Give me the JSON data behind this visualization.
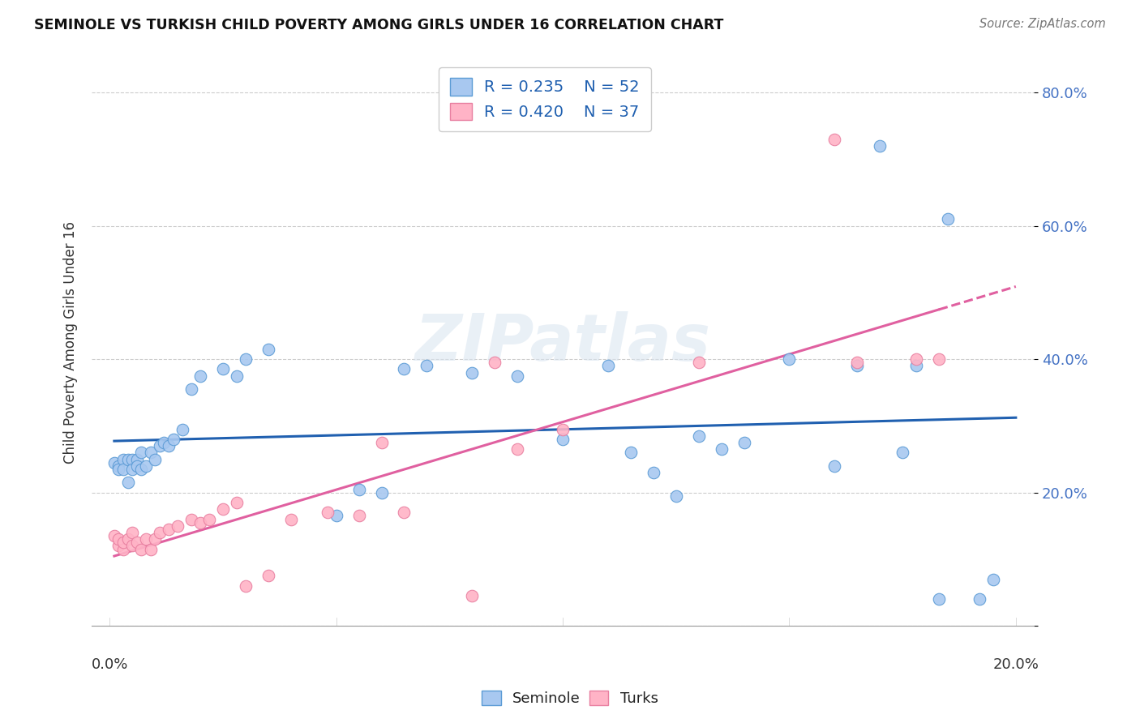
{
  "title": "SEMINOLE VS TURKISH CHILD POVERTY AMONG GIRLS UNDER 16 CORRELATION CHART",
  "source": "Source: ZipAtlas.com",
  "ylabel": "Child Poverty Among Girls Under 16",
  "legend_blue": {
    "R": "0.235",
    "N": "52",
    "label": "Seminole"
  },
  "legend_pink": {
    "R": "0.420",
    "N": "37",
    "label": "Turks"
  },
  "xlim": [
    0.0,
    0.2
  ],
  "ylim": [
    0.0,
    0.85
  ],
  "ytick_vals": [
    0.0,
    0.2,
    0.4,
    0.6,
    0.8
  ],
  "ytick_labels": [
    "",
    "20.0%",
    "40.0%",
    "60.0%",
    "80.0%"
  ],
  "blue_scatter_color": "#a8c8f0",
  "blue_edge_color": "#5b9bd5",
  "pink_scatter_color": "#ffb3c6",
  "pink_edge_color": "#e87fa0",
  "blue_line_color": "#2060b0",
  "pink_line_color": "#e060a0",
  "grid_color": "#cccccc",
  "watermark": "ZIPatlas",
  "watermark_color": "#d8e4f0",
  "seminole_x": [
    0.001,
    0.002,
    0.002,
    0.003,
    0.003,
    0.004,
    0.004,
    0.005,
    0.005,
    0.006,
    0.006,
    0.007,
    0.007,
    0.008,
    0.009,
    0.01,
    0.011,
    0.012,
    0.013,
    0.014,
    0.016,
    0.018,
    0.02,
    0.025,
    0.028,
    0.03,
    0.035,
    0.05,
    0.055,
    0.06,
    0.065,
    0.07,
    0.08,
    0.09,
    0.1,
    0.11,
    0.115,
    0.12,
    0.125,
    0.13,
    0.135,
    0.14,
    0.15,
    0.16,
    0.165,
    0.17,
    0.175,
    0.178,
    0.183,
    0.185,
    0.192,
    0.195
  ],
  "seminole_y": [
    0.245,
    0.24,
    0.235,
    0.25,
    0.235,
    0.25,
    0.215,
    0.25,
    0.235,
    0.25,
    0.24,
    0.26,
    0.235,
    0.24,
    0.26,
    0.25,
    0.27,
    0.275,
    0.27,
    0.28,
    0.295,
    0.355,
    0.375,
    0.385,
    0.375,
    0.4,
    0.415,
    0.165,
    0.205,
    0.2,
    0.385,
    0.39,
    0.38,
    0.375,
    0.28,
    0.39,
    0.26,
    0.23,
    0.195,
    0.285,
    0.265,
    0.275,
    0.4,
    0.24,
    0.39,
    0.72,
    0.26,
    0.39,
    0.04,
    0.61,
    0.04,
    0.07
  ],
  "turks_x": [
    0.001,
    0.002,
    0.002,
    0.003,
    0.003,
    0.004,
    0.005,
    0.005,
    0.006,
    0.007,
    0.008,
    0.009,
    0.01,
    0.011,
    0.013,
    0.015,
    0.018,
    0.02,
    0.022,
    0.025,
    0.028,
    0.03,
    0.035,
    0.04,
    0.048,
    0.055,
    0.06,
    0.065,
    0.08,
    0.085,
    0.09,
    0.1,
    0.13,
    0.16,
    0.165,
    0.178,
    0.183
  ],
  "turks_y": [
    0.135,
    0.12,
    0.13,
    0.115,
    0.125,
    0.13,
    0.14,
    0.12,
    0.125,
    0.115,
    0.13,
    0.115,
    0.13,
    0.14,
    0.145,
    0.15,
    0.16,
    0.155,
    0.16,
    0.175,
    0.185,
    0.06,
    0.075,
    0.16,
    0.17,
    0.165,
    0.275,
    0.17,
    0.045,
    0.395,
    0.265,
    0.295,
    0.395,
    0.73,
    0.395,
    0.4,
    0.4
  ]
}
